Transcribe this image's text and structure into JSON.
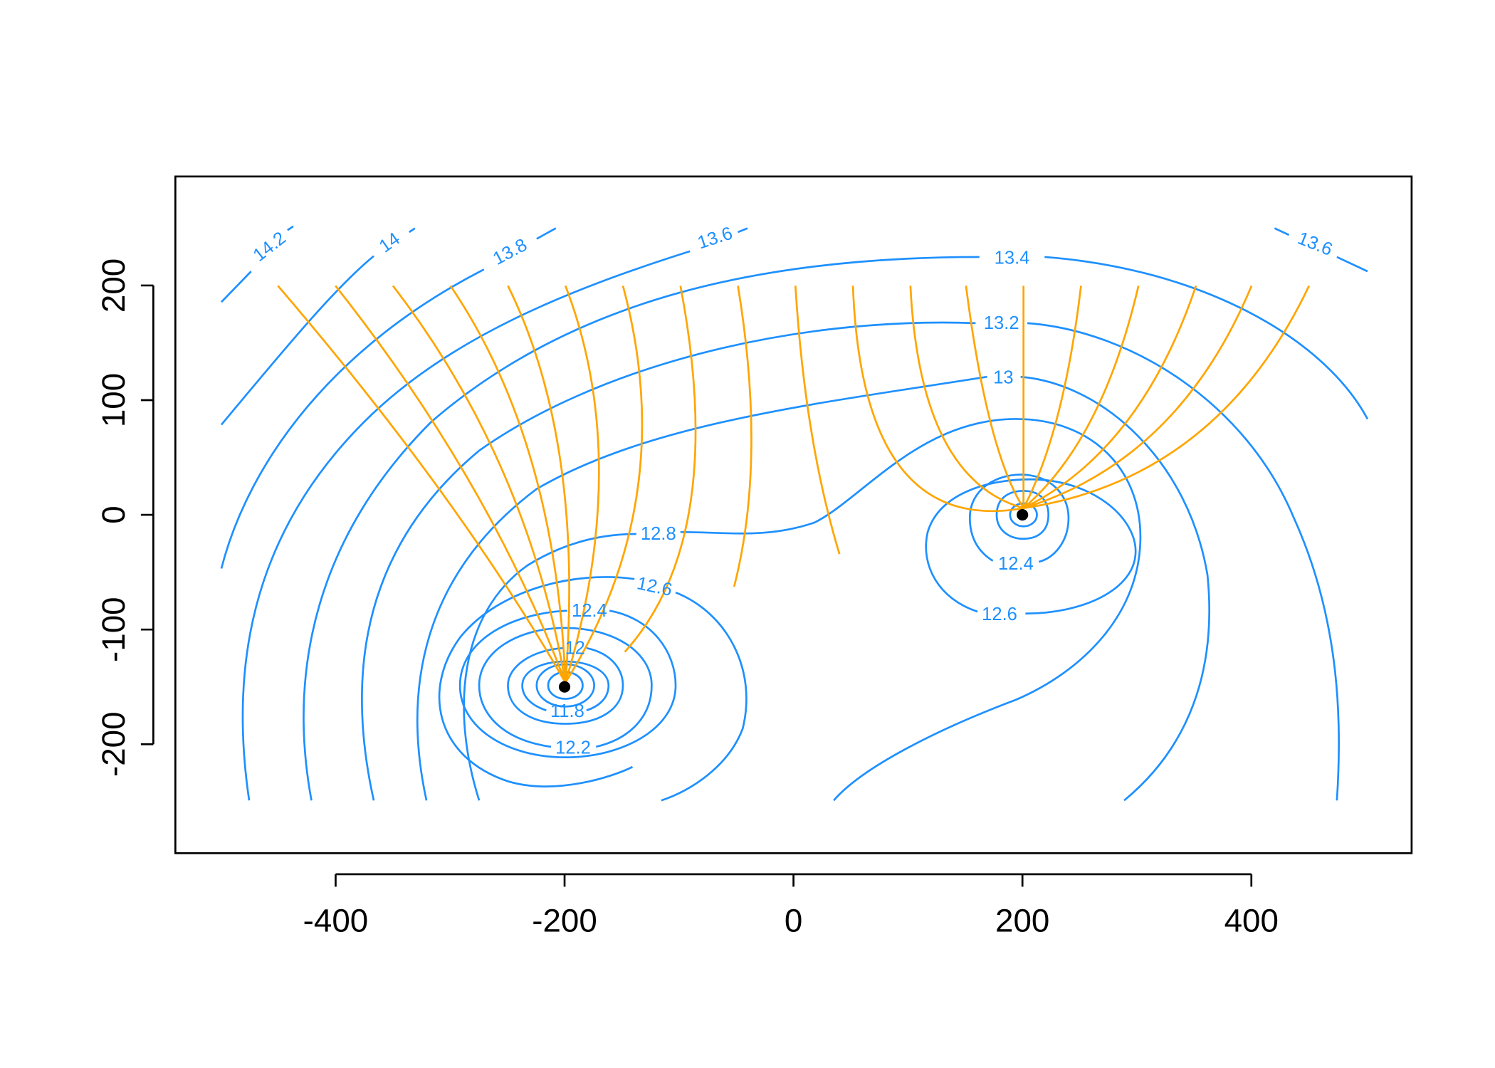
{
  "chart_data": {
    "type": "contour",
    "xlim": [
      -540,
      540
    ],
    "ylim": [
      -295,
      295
    ],
    "xticks": [
      -400,
      -200,
      0,
      200,
      400
    ],
    "yticks": [
      -200,
      -100,
      0,
      100,
      200
    ],
    "levels": [
      14.2,
      14,
      13.8,
      13.6,
      13.4,
      13.2,
      13,
      12.8,
      12.6,
      12.4,
      12.2,
      12,
      11.8
    ],
    "wells": {
      "x": [
        -200,
        200
      ],
      "y": [
        -150,
        0
      ]
    }
  }
}
